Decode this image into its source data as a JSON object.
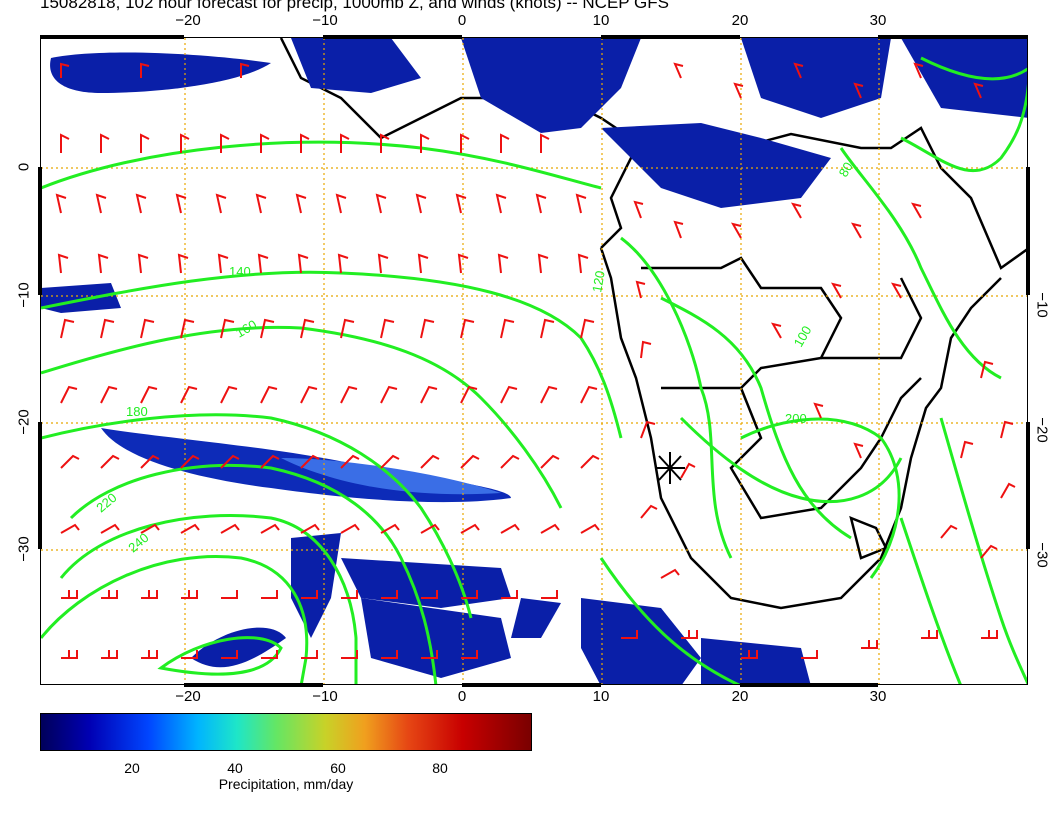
{
  "title": "15082818, 102 hour forecast for precip, 1000mb Z, and winds (knots) -- NCEP GFS",
  "axes": {
    "lon_top": [
      "−20",
      "−10",
      "0",
      "10",
      "20",
      "30"
    ],
    "lon_bottom": [
      "−20",
      "−10",
      "0",
      "10",
      "20",
      "30"
    ],
    "lat_left": [
      "0",
      "−10",
      "−20",
      "−30"
    ],
    "lat_right": [
      "−10",
      "−20",
      "−30"
    ]
  },
  "contour_labels": [
    "120",
    "140",
    "160",
    "180",
    "200",
    "220",
    "240",
    "100",
    "80"
  ],
  "colorbar": {
    "ticks": [
      "20",
      "40",
      "60",
      "80"
    ],
    "label": "Precipitation, mm/day"
  },
  "colors": {
    "contour": "#22ee22",
    "wind_barb": "#ee1111",
    "grid": "#e8a800",
    "coast": "#000000"
  }
}
